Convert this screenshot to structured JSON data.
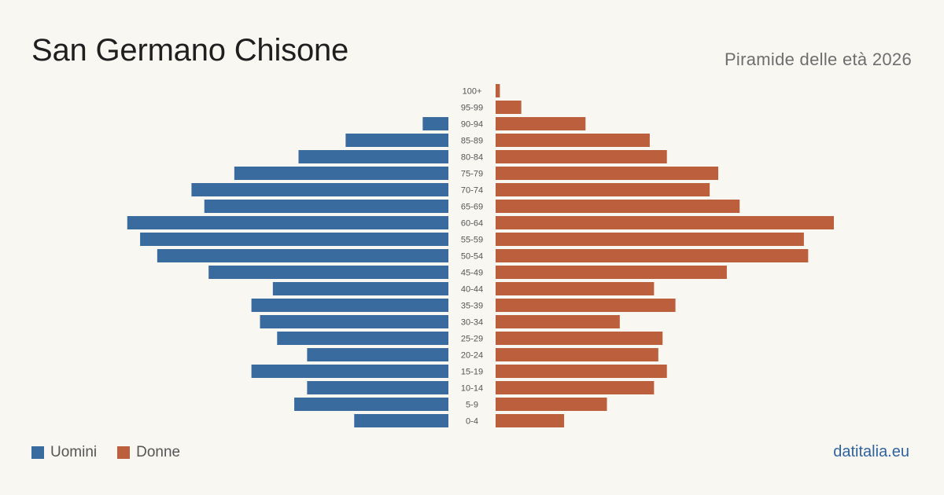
{
  "header": {
    "title": "San Germano Chisone",
    "subtitle": "Piramide delle età 2026"
  },
  "legend": {
    "men_label": "Uomini",
    "women_label": "Donne"
  },
  "colors": {
    "men": "#3a6b9e",
    "women": "#bc5f3d",
    "background": "#f9f7f2",
    "tick_text": "#555555",
    "brand": "#2f63a0"
  },
  "footer": {
    "brand": "datitalia.eu"
  },
  "chart_data": {
    "type": "bar",
    "orientation": "horizontal-pyramid",
    "categories": [
      "100+",
      "95-99",
      "90-94",
      "85-89",
      "80-84",
      "75-79",
      "70-74",
      "65-69",
      "60-64",
      "55-59",
      "50-54",
      "45-49",
      "40-44",
      "35-39",
      "30-34",
      "25-29",
      "20-24",
      "15-19",
      "10-14",
      "5-9",
      "0-4"
    ],
    "series": [
      {
        "name": "Uomini",
        "values": [
          0,
          0,
          6,
          24,
          35,
          50,
          60,
          57,
          75,
          72,
          68,
          56,
          41,
          46,
          44,
          40,
          33,
          46,
          33,
          36,
          22
        ]
      },
      {
        "name": "Donne",
        "values": [
          1,
          6,
          21,
          36,
          40,
          52,
          50,
          57,
          79,
          72,
          73,
          54,
          37,
          42,
          29,
          39,
          38,
          40,
          37,
          26,
          16
        ]
      }
    ],
    "legend_position": "bottom-left",
    "grid": false
  }
}
